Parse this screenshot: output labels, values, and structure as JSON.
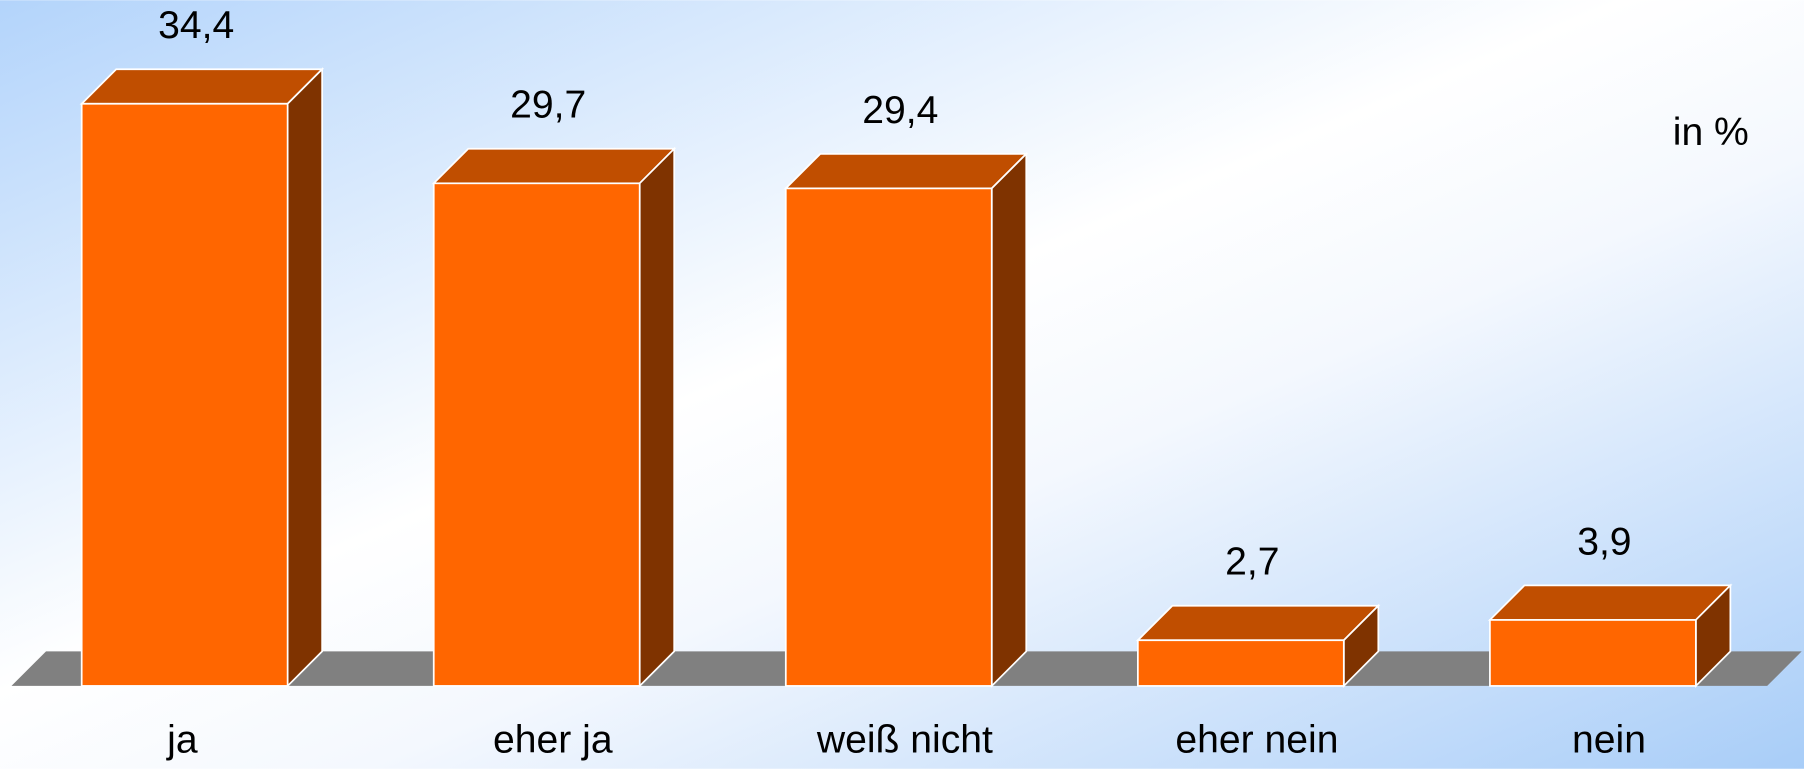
{
  "chart_data": {
    "type": "bar3d",
    "annotation": "in %",
    "categories": [
      "ja",
      "eher ja",
      "weiß nicht",
      "eher nein",
      "nein"
    ],
    "values": [
      34.4,
      29.7,
      29.4,
      2.7,
      3.9
    ],
    "value_labels": [
      "34,4",
      "29,7",
      "29,4",
      "2,7",
      "3,9"
    ],
    "color": "#ff6600"
  }
}
